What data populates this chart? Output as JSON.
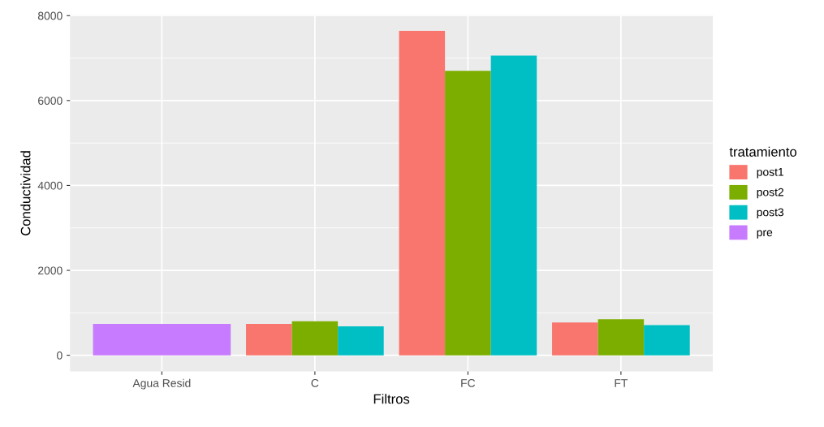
{
  "chart_data": {
    "type": "bar",
    "xlabel": "Filtros",
    "ylabel": "Conductividad",
    "legend_title": "tratamiento",
    "categories": [
      "Agua Resid",
      "C",
      "FC",
      "FT"
    ],
    "series": [
      {
        "name": "post1",
        "color": "#f8766d",
        "values": [
          null,
          740,
          7640,
          770
        ]
      },
      {
        "name": "post2",
        "color": "#7cae00",
        "values": [
          null,
          800,
          6700,
          850
        ]
      },
      {
        "name": "post3",
        "color": "#00bfc4",
        "values": [
          null,
          680,
          7060,
          710
        ]
      },
      {
        "name": "pre",
        "color": "#c77cff",
        "values": [
          740,
          null,
          null,
          null
        ]
      }
    ],
    "ylim": [
      -382,
      8016
    ],
    "yticks": [
      0,
      2000,
      4000,
      6000,
      8000
    ],
    "grid": true,
    "legend": "right"
  }
}
